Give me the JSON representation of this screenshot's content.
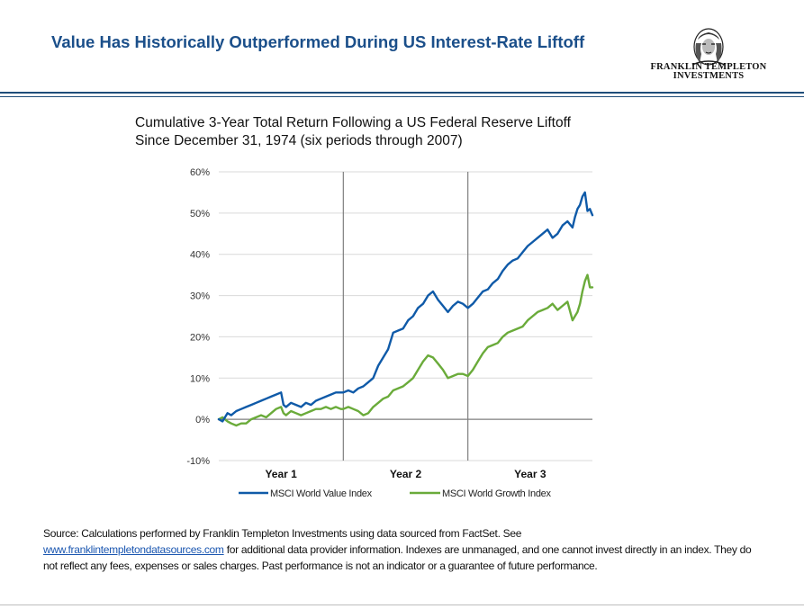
{
  "header": {
    "title": "Value Has Historically  Outperformed During US Interest-Rate Liftoff",
    "brand_line1": "FRANKLIN TEMPLETON",
    "brand_line2": "INVESTMENTS"
  },
  "chart_data": {
    "type": "line",
    "title": "Cumulative 3-Year Total Return Following a US Federal Reserve Liftoff",
    "subtitle": "Since December 31, 1974 (six periods through 2007)",
    "xlabel": "",
    "ylabel": "",
    "ylim": [
      -10,
      60
    ],
    "yticks": [
      -10,
      0,
      10,
      20,
      30,
      40,
      50,
      60
    ],
    "ytick_labels": [
      "-10%",
      "0%",
      "10%",
      "20%",
      "30%",
      "40%",
      "50%",
      "60%"
    ],
    "xlim": [
      0,
      3
    ],
    "x_category_labels": [
      "Year 1",
      "Year 2",
      "Year 3"
    ],
    "year_dividers": [
      1,
      2
    ],
    "grid": true,
    "legend_position": "bottom",
    "colors": {
      "value": "#0f5aa8",
      "growth": "#6aab3a",
      "grid": "#d9d9d9",
      "divider": "#7f7f7f"
    },
    "series": [
      {
        "name": "MSCI World Value Index",
        "x": [
          0,
          0.03,
          0.07,
          0.1,
          0.14,
          0.18,
          0.22,
          0.26,
          0.3,
          0.34,
          0.38,
          0.42,
          0.46,
          0.5,
          0.52,
          0.54,
          0.58,
          0.62,
          0.66,
          0.7,
          0.74,
          0.78,
          0.82,
          0.86,
          0.9,
          0.94,
          0.98,
          1.0,
          1.04,
          1.08,
          1.12,
          1.16,
          1.2,
          1.24,
          1.28,
          1.32,
          1.36,
          1.4,
          1.44,
          1.48,
          1.52,
          1.56,
          1.6,
          1.64,
          1.68,
          1.72,
          1.76,
          1.8,
          1.84,
          1.88,
          1.92,
          1.96,
          2.0,
          2.04,
          2.08,
          2.12,
          2.16,
          2.2,
          2.24,
          2.28,
          2.32,
          2.36,
          2.4,
          2.44,
          2.48,
          2.52,
          2.56,
          2.6,
          2.64,
          2.68,
          2.72,
          2.76,
          2.8,
          2.84,
          2.86,
          2.88,
          2.9,
          2.92,
          2.94,
          2.96,
          2.98,
          3.0
        ],
        "values": [
          0,
          -0.5,
          1.5,
          1,
          2,
          2.5,
          3,
          3.5,
          4,
          4.5,
          5,
          5.5,
          6,
          6.5,
          3.5,
          3,
          4,
          3.5,
          3,
          4,
          3.5,
          4.5,
          5,
          5.5,
          6,
          6.5,
          6.5,
          6.5,
          7,
          6.5,
          7.5,
          8,
          9,
          10,
          13,
          15,
          17,
          21,
          21.5,
          22,
          24,
          25,
          27,
          28,
          30,
          31,
          29,
          27.5,
          26,
          27.5,
          28.5,
          28,
          27,
          28,
          29.5,
          31,
          31.5,
          33,
          34,
          36,
          37.5,
          38.5,
          39,
          40.5,
          42,
          43,
          44,
          45,
          46,
          44,
          45,
          47,
          48,
          46.5,
          49,
          51,
          52,
          54,
          55,
          50.5,
          51,
          49.5
        ]
      },
      {
        "name": "MSCI World Growth Index",
        "x": [
          0,
          0.03,
          0.07,
          0.1,
          0.14,
          0.18,
          0.22,
          0.26,
          0.3,
          0.34,
          0.38,
          0.42,
          0.46,
          0.5,
          0.52,
          0.54,
          0.58,
          0.62,
          0.66,
          0.7,
          0.74,
          0.78,
          0.82,
          0.86,
          0.9,
          0.94,
          0.98,
          1.0,
          1.04,
          1.08,
          1.12,
          1.16,
          1.2,
          1.24,
          1.28,
          1.32,
          1.36,
          1.4,
          1.44,
          1.48,
          1.52,
          1.56,
          1.6,
          1.64,
          1.68,
          1.72,
          1.76,
          1.8,
          1.84,
          1.88,
          1.92,
          1.96,
          2.0,
          2.04,
          2.08,
          2.12,
          2.16,
          2.2,
          2.24,
          2.28,
          2.32,
          2.36,
          2.4,
          2.44,
          2.48,
          2.52,
          2.56,
          2.6,
          2.64,
          2.68,
          2.72,
          2.76,
          2.8,
          2.84,
          2.86,
          2.88,
          2.9,
          2.92,
          2.94,
          2.96,
          2.98,
          3.0
        ],
        "values": [
          0,
          0.5,
          -0.5,
          -1,
          -1.5,
          -1,
          -1,
          0,
          0.5,
          1,
          0.5,
          1.5,
          2.5,
          3,
          1.5,
          1,
          2,
          1.5,
          1,
          1.5,
          2,
          2.5,
          2.5,
          3,
          2.5,
          3,
          2.5,
          2.5,
          3,
          2.5,
          2,
          1,
          1.5,
          3,
          4,
          5,
          5.5,
          7,
          7.5,
          8,
          9,
          10,
          12,
          14,
          15.5,
          15,
          13.5,
          12,
          10,
          10.5,
          11,
          11,
          10.5,
          12,
          14,
          16,
          17.5,
          18,
          18.5,
          20,
          21,
          21.5,
          22,
          22.5,
          24,
          25,
          26,
          26.5,
          27,
          28,
          26.5,
          27.5,
          28.5,
          24,
          25,
          26,
          28,
          31,
          33.5,
          35,
          32,
          32
        ]
      }
    ]
  },
  "source": {
    "prefix": "Source: Calculations performed by Franklin Templeton Investments using data sourced from FactSet. See",
    "link_text": "www.franklintempletondatasources.com",
    "suffix": "for additional data provider information. Indexes are unmanaged, and one cannot invest directly in an index. They do not reflect any fees, expenses or sales charges. Past performance is not an indicator or a guarantee of future performance."
  }
}
